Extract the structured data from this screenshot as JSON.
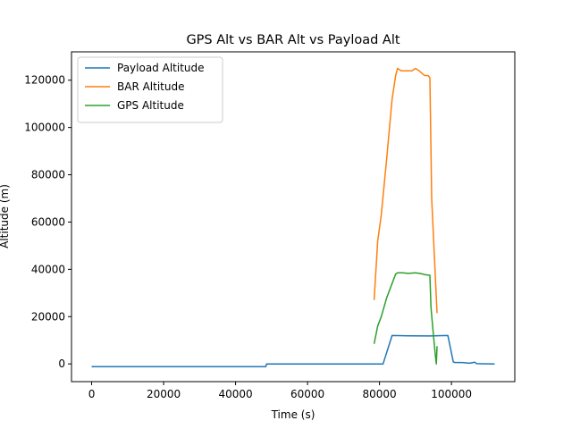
{
  "chart_data": {
    "type": "line",
    "title": "GPS Alt vs BAR Alt vs Payload Alt",
    "xlabel": "Time (s)",
    "ylabel": "Altitude (m)",
    "xlim": [
      -5600,
      117600
    ],
    "ylim": [
      -7500,
      132000
    ],
    "xticks": [
      0,
      20000,
      40000,
      60000,
      80000,
      100000
    ],
    "yticks": [
      0,
      20000,
      40000,
      60000,
      80000,
      100000,
      120000
    ],
    "grid": false,
    "legend_position": "top-left",
    "series": [
      {
        "name": "Payload Altitude",
        "color": "#1f77b4",
        "x": [
          0,
          48400,
          48600,
          80000,
          81000,
          83500,
          88000,
          94000,
          99000,
          100500,
          101000,
          103000,
          105000,
          106500,
          107000,
          112000
        ],
        "y": [
          -1200,
          -1200,
          0,
          0,
          0,
          12000,
          11900,
          11800,
          12000,
          800,
          600,
          600,
          300,
          700,
          100,
          0
        ]
      },
      {
        "name": "BAR Altitude",
        "color": "#ff7f0e",
        "x": [
          78500,
          79500,
          80500,
          82000,
          83500,
          84500,
          85000,
          86000,
          87500,
          89000,
          90000,
          91000,
          92500,
          93500,
          94000,
          94500,
          96000
        ],
        "y": [
          27000,
          52000,
          63000,
          87000,
          112000,
          122000,
          125000,
          124000,
          124000,
          124000,
          125000,
          124000,
          122000,
          122000,
          121000,
          70000,
          21500
        ]
      },
      {
        "name": "GPS Altitude",
        "color": "#2ca02c",
        "x": [
          78500,
          79500,
          80500,
          82000,
          83500,
          84500,
          85000,
          86500,
          88000,
          90000,
          91500,
          92500,
          94000,
          94300,
          95000,
          95500,
          95800,
          96000
        ],
        "y": [
          8500,
          16000,
          20000,
          28000,
          34000,
          38000,
          38500,
          38500,
          38300,
          38500,
          38200,
          37800,
          37500,
          24000,
          12000,
          4000,
          0,
          7500
        ]
      }
    ]
  }
}
